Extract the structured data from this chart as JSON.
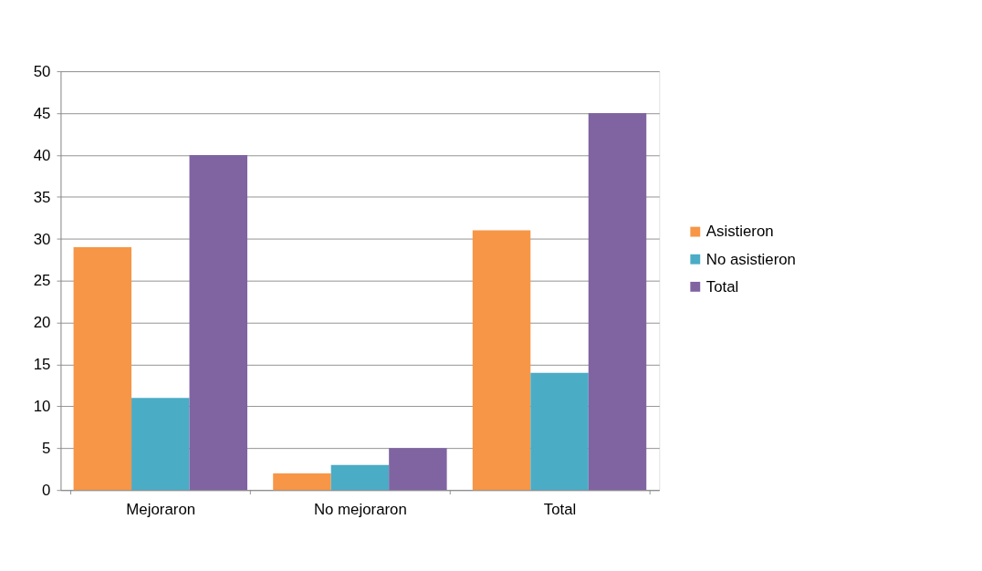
{
  "chart_data": {
    "type": "bar",
    "categories": [
      "Mejoraron",
      "No mejoraron",
      "Total"
    ],
    "series": [
      {
        "name": "Asistieron",
        "color": "#f79646",
        "values": [
          29,
          2,
          31
        ]
      },
      {
        "name": "No asistieron",
        "color": "#4bacc6",
        "values": [
          11,
          3,
          14
        ]
      },
      {
        "name": "Total",
        "color": "#8064a2",
        "values": [
          40,
          5,
          45
        ]
      }
    ],
    "ylim": [
      0,
      50
    ],
    "yticks": [
      0,
      5,
      10,
      15,
      20,
      25,
      30,
      35,
      40,
      45,
      50
    ],
    "grid": "y",
    "legend": "right"
  }
}
